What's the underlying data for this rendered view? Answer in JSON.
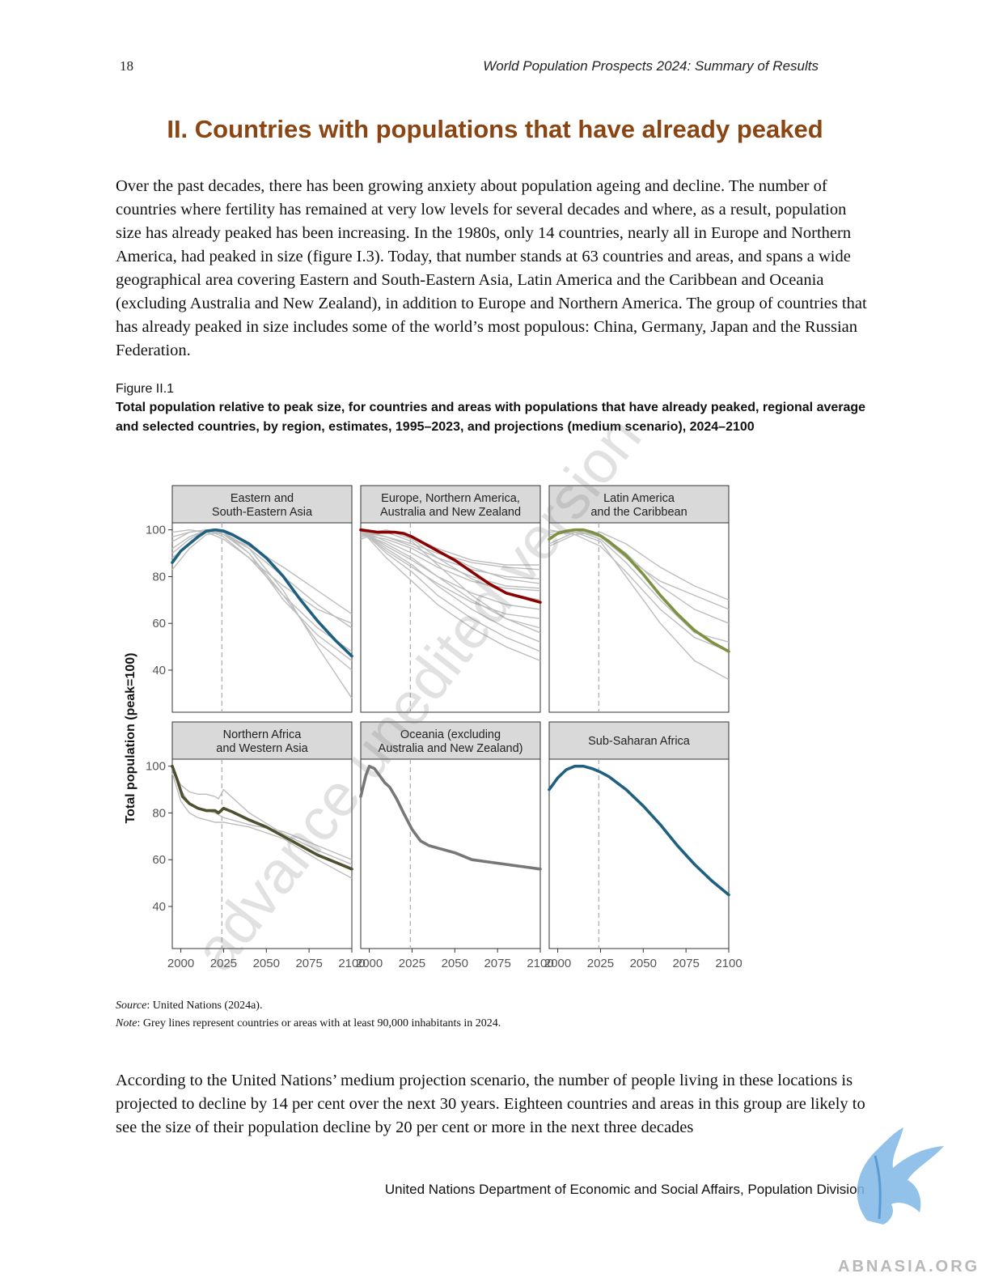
{
  "header": {
    "page_number": "18",
    "running_title": "World Population Prospects 2024: Summary of Results"
  },
  "section": {
    "title": "II. Countries with populations that have already peaked"
  },
  "paragraphs": [
    "Over the past decades, there has been growing anxiety about population ageing and decline. The number of countries where fertility has remained at very low levels for several decades and where, as a result, population size has already peaked has been increasing. In the 1980s, only 14 countries, nearly all in Europe and Northern America, had peaked in size (figure I.3). Today, that number stands at 63 countries and areas, and spans a wide geographical area covering Eastern and South-Eastern Asia, Latin America and the Caribbean and Oceania (excluding Australia and New Zealand), in addition to Europe and Northern America. The group of countries that has already peaked in size includes some of the world’s most populous: China, Germany, Japan and the Russian Federation.",
    "According to the United Nations’ medium projection scenario, the number of people living in these locations is projected to decline by 14 per cent over the next 30 years. Eighteen countries and areas in this group are likely to see the size of their population decline by 20 per cent or more in the next three decades"
  ],
  "figure": {
    "label": "Figure II.1",
    "title": "Total population relative to peak size, for countries and areas with populations that have already peaked, regional average and selected countries, by region, estimates, 1995–2023, and projections (medium scenario), 2024–2100",
    "source_label": "Source",
    "source_text": ": United Nations (2024a).",
    "note_label": "Note",
    "note_text": ": Grey lines represent countries or areas with at least 90,000 inhabitants in 2024."
  },
  "chart_data": {
    "type": "line",
    "ylabel": "Total population (peak=100)",
    "xlabel": "",
    "x_ticks": [
      2000,
      2025,
      2050,
      2075,
      2100
    ],
    "y_ticks": [
      40,
      60,
      80,
      100
    ],
    "xlim": [
      1995,
      2100
    ],
    "ylim": [
      22,
      103
    ],
    "reference_line_x": 2024,
    "grey_line_color": "#bdbdbd",
    "panels": [
      {
        "title": "Eastern and South-Eastern Asia",
        "color": "#1f5f80",
        "series": {
          "x": [
            1995,
            2000,
            2005,
            2010,
            2015,
            2020,
            2022,
            2025,
            2030,
            2040,
            2050,
            2060,
            2070,
            2080,
            2090,
            2100
          ],
          "y": [
            86,
            91,
            94,
            97,
            99.5,
            100,
            99.8,
            99.5,
            98,
            94,
            88,
            80,
            70,
            61,
            53,
            46
          ]
        },
        "grey": [
          {
            "x": [
              1995,
              2005,
              2015,
              2025,
              2040,
              2060,
              2080,
              2100
            ],
            "y": [
              97,
              99,
              100,
              98,
              92,
              80,
              68,
              58
            ]
          },
          {
            "x": [
              1995,
              2005,
              2015,
              2025,
              2040,
              2060,
              2080,
              2100
            ],
            "y": [
              88,
              94,
              99,
              99,
              90,
              72,
              52,
              40
            ]
          },
          {
            "x": [
              1995,
              2005,
              2015,
              2025,
              2040,
              2060,
              2080,
              2100
            ],
            "y": [
              99,
              100,
              99,
              96,
              88,
              76,
              66,
              60
            ]
          },
          {
            "x": [
              1995,
              2005,
              2015,
              2025,
              2040,
              2060,
              2080,
              2100
            ],
            "y": [
              83,
              92,
              98,
              99,
              92,
              74,
              50,
              28
            ]
          },
          {
            "x": [
              1995,
              2005,
              2015,
              2025,
              2040,
              2060,
              2080,
              2100
            ],
            "y": [
              95,
              99,
              100,
              97,
              88,
              72,
              58,
              48
            ]
          },
          {
            "x": [
              1995,
              2005,
              2015,
              2025,
              2040,
              2060,
              2080,
              2100
            ],
            "y": [
              90,
              96,
              100,
              98,
              93,
              84,
              74,
              64
            ]
          },
          {
            "x": [
              1995,
              2005,
              2015,
              2025,
              2040,
              2060,
              2080,
              2100
            ],
            "y": [
              92,
              97,
              100,
              98,
              90,
              70,
              55,
              44
            ]
          }
        ]
      },
      {
        "title": "Europe, Northern America, Australia and New Zealand",
        "color": "#8b0000",
        "series": {
          "x": [
            1995,
            2000,
            2005,
            2010,
            2015,
            2020,
            2025,
            2030,
            2040,
            2050,
            2060,
            2070,
            2080,
            2090,
            2100
          ],
          "y": [
            100,
            99.5,
            99,
            99,
            99,
            98.5,
            97,
            95,
            91,
            87,
            82,
            77,
            73,
            71,
            69
          ]
        },
        "grey": [
          {
            "x": [
              1995,
              2010,
              2025,
              2040,
              2060,
              2080,
              2100
            ],
            "y": [
              100,
              97,
              94,
              90,
              86,
              84,
              83
            ]
          },
          {
            "x": [
              1995,
              2010,
              2025,
              2040,
              2060,
              2080,
              2100
            ],
            "y": [
              98,
              100,
              97,
              92,
              87,
              85,
              85
            ]
          },
          {
            "x": [
              1995,
              2010,
              2025,
              2040,
              2060,
              2080,
              2100
            ],
            "y": [
              100,
              95,
              90,
              84,
              78,
              75,
              74
            ]
          },
          {
            "x": [
              1995,
              2010,
              2025,
              2040,
              2060,
              2080,
              2100
            ],
            "y": [
              97,
              100,
              96,
              88,
              79,
              73,
              70
            ]
          },
          {
            "x": [
              1995,
              2010,
              2025,
              2040,
              2060,
              2080,
              2100
            ],
            "y": [
              100,
              92,
              85,
              76,
              66,
              58,
              52
            ]
          },
          {
            "x": [
              1995,
              2010,
              2025,
              2040,
              2060,
              2080,
              2100
            ],
            "y": [
              99,
              94,
              88,
              80,
              70,
              62,
              58
            ]
          },
          {
            "x": [
              1995,
              2010,
              2025,
              2040,
              2060,
              2080,
              2100
            ],
            "y": [
              100,
              90,
              82,
              72,
              62,
              54,
              48
            ]
          },
          {
            "x": [
              1995,
              2010,
              2025,
              2040,
              2060,
              2080,
              2100
            ],
            "y": [
              96,
              100,
              97,
              91,
              84,
              79,
              77
            ]
          },
          {
            "x": [
              1995,
              2010,
              2025,
              2040,
              2060,
              2080,
              2100
            ],
            "y": [
              100,
              93,
              87,
              80,
              73,
              68,
              66
            ]
          },
          {
            "x": [
              1995,
              2010,
              2025,
              2040,
              2060,
              2080,
              2100
            ],
            "y": [
              98,
              96,
              92,
              86,
              80,
              76,
              75
            ]
          },
          {
            "x": [
              1995,
              2010,
              2025,
              2040,
              2060,
              2080,
              2100
            ],
            "y": [
              100,
              88,
              78,
              68,
              58,
              50,
              44
            ]
          },
          {
            "x": [
              1995,
              2010,
              2025,
              2040,
              2060,
              2080,
              2100
            ],
            "y": [
              97,
              99,
              95,
              85,
              72,
              62,
              56
            ]
          },
          {
            "x": [
              1995,
              2010,
              2025,
              2040,
              2060,
              2080,
              2100
            ],
            "y": [
              100,
              91,
              84,
              77,
              69,
              64,
              62
            ]
          },
          {
            "x": [
              1995,
              2010,
              2025,
              2040,
              2060,
              2080,
              2100
            ],
            "y": [
              99,
              97,
              93,
              88,
              83,
              80,
              79
            ]
          }
        ]
      },
      {
        "title": "Latin America and the Caribbean",
        "color": "#7d9140",
        "series": {
          "x": [
            1995,
            2000,
            2005,
            2010,
            2015,
            2020,
            2025,
            2030,
            2040,
            2050,
            2060,
            2070,
            2080,
            2090,
            2100
          ],
          "y": [
            96,
            98.5,
            99.5,
            100,
            100,
            99,
            97.5,
            95,
            89,
            81,
            72,
            64,
            57,
            52,
            48
          ]
        },
        "grey": [
          {
            "x": [
              1995,
              2010,
              2025,
              2040,
              2060,
              2080,
              2100
            ],
            "y": [
              94,
              99,
              98,
              90,
              76,
              66,
              60
            ]
          },
          {
            "x": [
              1995,
              2010,
              2025,
              2040,
              2060,
              2080,
              2100
            ],
            "y": [
              100,
              98,
              93,
              82,
              66,
              54,
              48
            ]
          },
          {
            "x": [
              1995,
              2010,
              2025,
              2040,
              2060,
              2080,
              2100
            ],
            "y": [
              97,
              100,
              96,
              86,
              70,
              56,
              52
            ]
          },
          {
            "x": [
              1995,
              2010,
              2025,
              2040,
              2060,
              2080,
              2100
            ],
            "y": [
              98,
              99,
              95,
              80,
              60,
              44,
              36
            ]
          },
          {
            "x": [
              1995,
              2010,
              2025,
              2040,
              2060,
              2080,
              2100
            ],
            "y": [
              93,
              98,
              99,
              94,
              84,
              76,
              70
            ]
          },
          {
            "x": [
              1995,
              2010,
              2025,
              2040,
              2060,
              2080,
              2100
            ],
            "y": [
              99,
              100,
              97,
              88,
              78,
              72,
              66
            ]
          }
        ]
      },
      {
        "title": "Northern Africa and Western Asia",
        "color": "#4f5030",
        "series": {
          "x": [
            1995,
            1998,
            2001,
            2005,
            2010,
            2015,
            2020,
            2022,
            2025,
            2030,
            2040,
            2050,
            2060,
            2070,
            2080,
            2090,
            2100
          ],
          "y": [
            100,
            94,
            87,
            84,
            82,
            81,
            81,
            80,
            82,
            80.5,
            77,
            74,
            70,
            66,
            62,
            59,
            56
          ]
        },
        "grey": [
          {
            "x": [
              1995,
              2000,
              2005,
              2010,
              2015,
              2020,
              2022,
              2025,
              2040,
              2060,
              2080,
              2100
            ],
            "y": [
              98,
              92,
              89,
              88,
              88,
              87,
              86,
              90,
              80,
              71,
              64,
              58
            ]
          },
          {
            "x": [
              1995,
              2000,
              2005,
              2010,
              2015,
              2020,
              2025,
              2040,
              2060,
              2080,
              2100
            ],
            "y": [
              97,
              85,
              80,
              78,
              77,
              76,
              76,
              74,
              69,
              60,
              52
            ]
          },
          {
            "x": [
              1995,
              2000,
              2005,
              2010,
              2015,
              2020,
              2025,
              2040,
              2060,
              2080,
              2100
            ],
            "y": [
              100,
              90,
              84,
              82,
              81,
              80,
              78,
              75,
              72,
              66,
              60
            ]
          }
        ]
      },
      {
        "title": "Oceania (excluding Australia and New Zealand)",
        "color": "#777777",
        "series": {
          "x": [
            1995,
            1998,
            2000,
            2003,
            2006,
            2009,
            2012,
            2016,
            2020,
            2025,
            2030,
            2035,
            2040,
            2050,
            2060,
            2070,
            2080,
            2090,
            2100
          ],
          "y": [
            87,
            96,
            100,
            99,
            96,
            93,
            91,
            86,
            80,
            73,
            68,
            66,
            65,
            63,
            60,
            59,
            58,
            57,
            56
          ]
        },
        "grey": []
      },
      {
        "title": "Sub-Saharan Africa",
        "color": "#1f5f80",
        "series": {
          "x": [
            1995,
            2000,
            2005,
            2010,
            2015,
            2020,
            2025,
            2030,
            2040,
            2050,
            2060,
            2070,
            2080,
            2090,
            2100
          ],
          "y": [
            90,
            95,
            98.5,
            100,
            100,
            99,
            97.5,
            95.5,
            90,
            83,
            75,
            66,
            58,
            51,
            45
          ]
        },
        "grey": []
      }
    ]
  },
  "footer": {
    "text": "United Nations Department of Economic and Social Affairs, Population Division"
  },
  "watermark": {
    "text": "advance unedited version"
  },
  "brand": {
    "text": "ABNASIA.ORG",
    "color": "#7fb6e6"
  }
}
